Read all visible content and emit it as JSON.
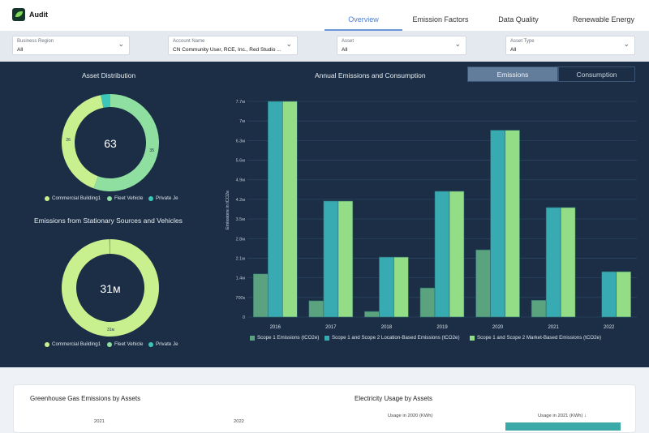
{
  "app": {
    "title": "Audit"
  },
  "tabs": [
    {
      "label": "Overview",
      "active": true
    },
    {
      "label": "Emission Factors"
    },
    {
      "label": "Data Quality"
    },
    {
      "label": "Renewable Energy"
    }
  ],
  "filters": [
    {
      "label": "Business Region",
      "value": "All"
    },
    {
      "label": "Account Name",
      "value": "CN Community User, RCE, Inc., Red Studio ..."
    },
    {
      "label": "Asset",
      "value": "All"
    },
    {
      "label": "Asset Type",
      "value": "All"
    }
  ],
  "asset_distribution": {
    "title": "Asset Distribution",
    "center": "63",
    "legend": [
      "Commercial Building1",
      "Fleet Vehicle",
      "Private Je"
    ]
  },
  "stationary": {
    "title": "Emissions from Stationary Sources and Vehicles",
    "center": "31м",
    "legend": [
      "Commercial Building1",
      "Fleet Vehicle",
      "Private Je"
    ]
  },
  "annual": {
    "title": "Annual Emissions and Consumption",
    "toggle": [
      "Emissions",
      "Consumption"
    ],
    "active": "Emissions"
  },
  "colors": {
    "commercial": "#c8f08f",
    "fleet": "#8fe0a0",
    "private": "#3cc6b8",
    "scope1": "#5aa37e",
    "location": "#38aab1",
    "market": "#93dd86",
    "bg": "#1b2e45"
  },
  "chart_data": [
    {
      "type": "pie",
      "title": "Asset Distribution",
      "labels": [
        "Fleet Vehicle",
        "Commercial Building1",
        "Private Je"
      ],
      "values": [
        35,
        26,
        2
      ],
      "data_labels": [
        "35",
        "26",
        ""
      ]
    },
    {
      "type": "pie",
      "title": "Emissions from Stationary Sources and Vehicles",
      "labels": [
        "Commercial Building1",
        "Fleet Vehicle",
        "Private Je"
      ],
      "values": [
        31,
        0,
        0.1
      ],
      "data_labels": [
        "31м",
        "",
        ""
      ]
    },
    {
      "type": "bar",
      "title": "Annual Emissions and Consumption",
      "ylabel": "Emissions in tCO2e",
      "ylim": [
        0,
        7.7
      ],
      "yticks": [
        "0",
        "700к",
        "1.4м",
        "2.1м",
        "2.8м",
        "3.5м",
        "4.2м",
        "4.9м",
        "5.6м",
        "6.3м",
        "7м",
        "7.7м"
      ],
      "categories": [
        "2016",
        "2017",
        "2018",
        "2019",
        "2020",
        "2021",
        "2022"
      ],
      "series": [
        {
          "name": "Scope 1 Emissions (tCO2e)",
          "values": [
            1.54,
            0.58,
            0.2,
            1.04,
            2.4,
            0.6,
            0
          ]
        },
        {
          "name": "Scope 1 and Scope 2 Location-Based Emissions (tCO2e)",
          "values": [
            7.7,
            4.14,
            2.14,
            4.49,
            6.67,
            3.91,
            1.62
          ]
        },
        {
          "name": "Scope 1 and Scope 2 Market-Based Emissions (tCO2e)",
          "values": [
            7.7,
            4.14,
            2.14,
            4.49,
            6.67,
            3.91,
            1.62
          ]
        }
      ],
      "grid": true,
      "legend": "bottom"
    }
  ],
  "bottom": {
    "ghg_title": "Greenhouse Gas Emissions by Assets",
    "ghg_cols": [
      "2021",
      "2022"
    ],
    "elec_title": "Electricity Usage by Assets",
    "elec_cols": [
      "Usage in 2020 (KWh)",
      "Usage in 2021 (KWh) ↓"
    ]
  }
}
